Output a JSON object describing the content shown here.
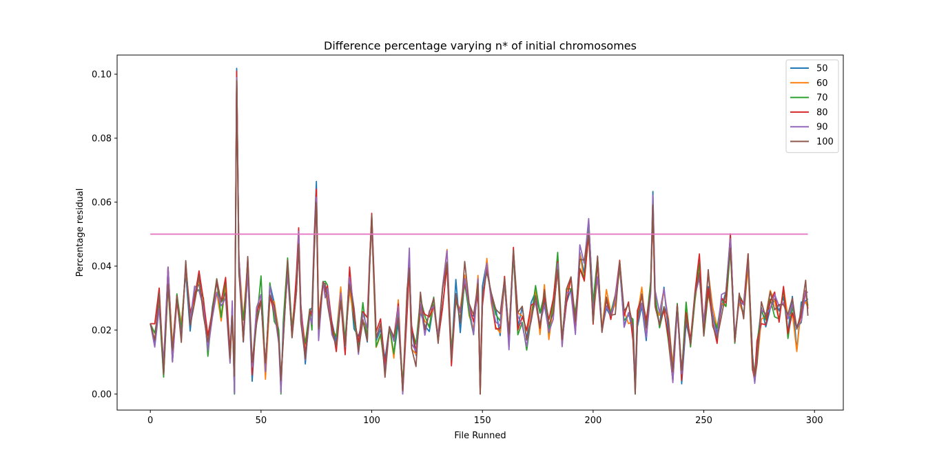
{
  "chart_data": {
    "type": "line",
    "title": "Difference percentage varying n* of initial chromosomes",
    "xlabel": "File Runned",
    "ylabel": "Percentage residual",
    "xlim": [
      -15,
      313
    ],
    "ylim": [
      -0.005,
      0.106
    ],
    "xticks": [
      0,
      50,
      100,
      150,
      200,
      250,
      300
    ],
    "xtick_labels": [
      "0",
      "50",
      "100",
      "150",
      "200",
      "250",
      "300"
    ],
    "yticks": [
      0.0,
      0.02,
      0.04,
      0.06,
      0.08,
      0.1
    ],
    "ytick_labels": [
      "0.00",
      "0.02",
      "0.04",
      "0.06",
      "0.08",
      "0.10"
    ],
    "grid": false,
    "legend_position": "upper right",
    "threshold": {
      "y": 0.05,
      "x_range": [
        0,
        297
      ],
      "color": "#e377c2"
    },
    "series": [
      {
        "name": "50",
        "color": "#1f77b4",
        "seed": 11
      },
      {
        "name": "60",
        "color": "#ff7f0e",
        "seed": 23
      },
      {
        "name": "70",
        "color": "#2ca02c",
        "seed": 37
      },
      {
        "name": "80",
        "color": "#d62728",
        "seed": 41
      },
      {
        "name": "90",
        "color": "#9467bd",
        "seed": 53
      },
      {
        "name": "100",
        "color": "#8c564b",
        "seed": 67
      }
    ],
    "x": [
      0,
      2,
      4,
      6,
      8,
      10,
      12,
      14,
      16,
      18,
      20,
      22,
      24,
      26,
      28,
      30,
      32,
      34,
      36,
      37,
      38,
      39,
      40,
      42,
      44,
      46,
      48,
      50,
      52,
      54,
      56,
      58,
      59,
      60,
      62,
      64,
      66,
      67,
      68,
      70,
      72,
      73,
      74,
      75,
      76,
      78,
      79,
      80,
      82,
      84,
      86,
      88,
      90,
      92,
      94,
      96,
      98,
      99,
      100,
      102,
      104,
      106,
      108,
      110,
      112,
      114,
      116,
      117,
      118,
      120,
      122,
      124,
      126,
      128,
      130,
      132,
      134,
      136,
      138,
      140,
      142,
      144,
      146,
      148,
      149,
      150,
      152,
      154,
      156,
      158,
      160,
      162,
      164,
      166,
      168,
      170,
      172,
      174,
      176,
      178,
      180,
      182,
      184,
      186,
      188,
      190,
      192,
      194,
      196,
      198,
      200,
      202,
      204,
      206,
      208,
      210,
      212,
      214,
      216,
      218,
      219,
      220,
      222,
      224,
      226,
      227,
      228,
      230,
      232,
      234,
      236,
      238,
      240,
      242,
      244,
      246,
      248,
      250,
      252,
      254,
      256,
      258,
      260,
      262,
      264,
      266,
      268,
      270,
      272,
      273,
      274,
      276,
      278,
      280,
      282,
      284,
      286,
      288,
      290,
      292,
      294,
      296,
      297
    ],
    "base": [
      0.024,
      0.018,
      0.03,
      0.009,
      0.038,
      0.012,
      0.033,
      0.02,
      0.041,
      0.022,
      0.031,
      0.036,
      0.028,
      0.015,
      0.027,
      0.034,
      0.025,
      0.033,
      0.012,
      0.028,
      0.003,
      0.1,
      0.04,
      0.02,
      0.04,
      0.007,
      0.025,
      0.033,
      0.008,
      0.031,
      0.026,
      0.018,
      0.001,
      0.02,
      0.041,
      0.018,
      0.036,
      0.049,
      0.025,
      0.012,
      0.028,
      0.024,
      0.047,
      0.063,
      0.02,
      0.038,
      0.033,
      0.031,
      0.022,
      0.017,
      0.033,
      0.013,
      0.036,
      0.024,
      0.016,
      0.026,
      0.02,
      0.04,
      0.056,
      0.016,
      0.022,
      0.007,
      0.024,
      0.015,
      0.026,
      0.002,
      0.029,
      0.042,
      0.018,
      0.012,
      0.028,
      0.021,
      0.022,
      0.027,
      0.018,
      0.03,
      0.044,
      0.01,
      0.032,
      0.023,
      0.038,
      0.026,
      0.022,
      0.034,
      0.002,
      0.03,
      0.041,
      0.028,
      0.024,
      0.022,
      0.034,
      0.016,
      0.047,
      0.022,
      0.024,
      0.017,
      0.025,
      0.031,
      0.022,
      0.031,
      0.02,
      0.026,
      0.042,
      0.015,
      0.03,
      0.035,
      0.022,
      0.043,
      0.038,
      0.053,
      0.025,
      0.04,
      0.02,
      0.03,
      0.022,
      0.027,
      0.038,
      0.024,
      0.026,
      0.02,
      0.002,
      0.025,
      0.031,
      0.02,
      0.034,
      0.06,
      0.031,
      0.022,
      0.03,
      0.02,
      0.006,
      0.026,
      0.004,
      0.025,
      0.015,
      0.03,
      0.04,
      0.022,
      0.035,
      0.025,
      0.019,
      0.028,
      0.031,
      0.049,
      0.018,
      0.03,
      0.025,
      0.041,
      0.011,
      0.003,
      0.013,
      0.025,
      0.023,
      0.03,
      0.028,
      0.025,
      0.03,
      0.021,
      0.029,
      0.017,
      0.026,
      0.032,
      0.028
    ]
  }
}
